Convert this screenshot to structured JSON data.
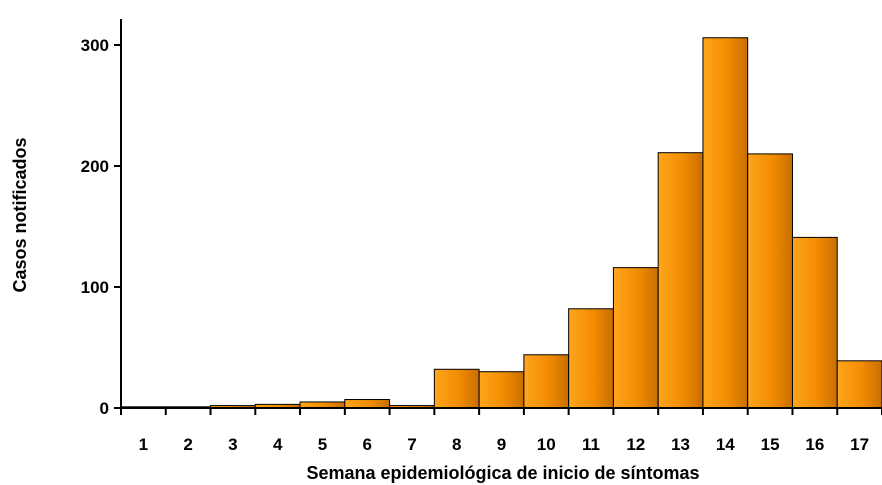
{
  "chart_data": {
    "type": "bar",
    "categories": [
      "1",
      "2",
      "3",
      "4",
      "5",
      "6",
      "7",
      "8",
      "9",
      "10",
      "11",
      "12",
      "13",
      "14",
      "15",
      "16",
      "17"
    ],
    "values": [
      1,
      1,
      2,
      3,
      5,
      7,
      2,
      32,
      30,
      44,
      82,
      116,
      211,
      306,
      210,
      141,
      39
    ],
    "xlabel": "Semana epidemiológica de inicio de síntomas",
    "ylabel": "Casos notificados",
    "ylim": [
      0,
      320
    ],
    "yticks": [
      0,
      100,
      200,
      300
    ],
    "grid": false,
    "legend": "none",
    "colors": {
      "bar_light": "#ffa51e",
      "bar_mid": "#f28c00",
      "bar_dark": "#c86e00",
      "bar_stroke": "#000000",
      "axis": "#000000"
    }
  }
}
